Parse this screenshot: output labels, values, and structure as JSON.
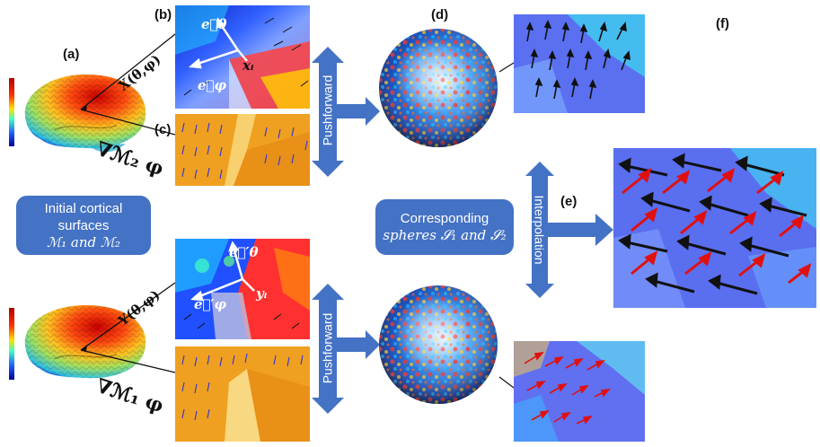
{
  "labels": {
    "a": "(a)",
    "b": "(b)",
    "c": "(c)",
    "d": "(d)",
    "e": "(e)",
    "f": "(f)"
  },
  "boxes": {
    "initial_line1": "Initial cortical",
    "initial_line2": "surfaces",
    "initial_line3": "ℳ₁ and ℳ₂",
    "corresponding_line1": "Corresponding",
    "corresponding_line2": "spheres 𝓢₁ and 𝓢₂"
  },
  "arrows": {
    "pushforward_top": "Pushforward",
    "pushforward_bottom": "Pushforward",
    "interpolation": "Interpolation"
  },
  "math": {
    "x_map": "X(θ,φ)",
    "y_map": "Y(θ,φ)",
    "grad_m2": "∇ℳ₂ φ",
    "grad_m1": "∇ℳ₁ φ",
    "e_theta": "e⃗θ",
    "e_phi": "e⃗φ",
    "e_theta_prime": "e⃗′θ",
    "e_phi_prime": "e⃗′φ",
    "x_i": "xᵢ",
    "y_i": "yᵢ"
  },
  "colors": {
    "box_blue": "#4472c4",
    "vector_black": "#111111",
    "vector_red": "#e01010",
    "vector_blue": "#3a3ad0"
  }
}
